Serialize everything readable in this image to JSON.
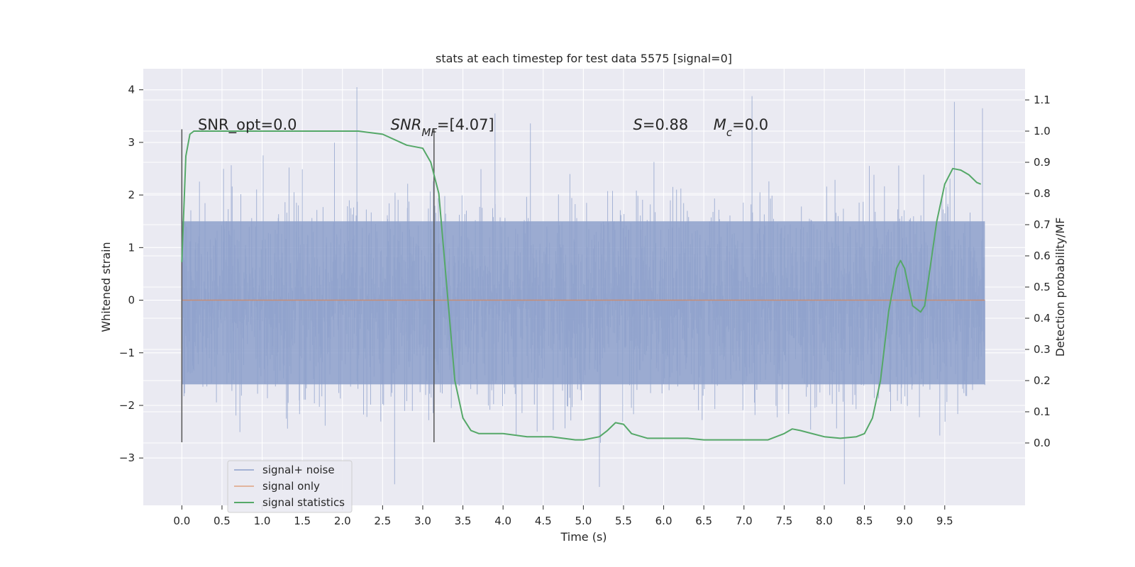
{
  "chart_data": {
    "type": "line",
    "title": "stats at each timestep for test data 5575 [signal=0]",
    "xlabel": "Time (s)",
    "ylabel_left": "Whitened strain",
    "ylabel_right": "Detection probability/MF",
    "xlim": [
      -0.48,
      10.5
    ],
    "ylim_left": [
      -3.9,
      4.4
    ],
    "ylim_right": [
      -0.2,
      1.2
    ],
    "x_ticks": [
      "0.0",
      "0.5",
      "1.0",
      "1.5",
      "2.0",
      "2.5",
      "3.0",
      "3.5",
      "4.0",
      "4.5",
      "5.0",
      "5.5",
      "6.0",
      "6.5",
      "7.0",
      "7.5",
      "8.0",
      "8.5",
      "9.0",
      "9.5"
    ],
    "y_left_ticks": [
      "4",
      "3",
      "2",
      "1",
      "0",
      "−1",
      "−2",
      "−3"
    ],
    "y_right_ticks": [
      "1.1",
      "1.0",
      "0.9",
      "0.8",
      "0.7",
      "0.6",
      "0.5",
      "0.4",
      "0.3",
      "0.2",
      "0.1",
      "0.0"
    ],
    "grid": true,
    "legend_placement": "lower-left",
    "colors": {
      "noise": "#8da0cb",
      "signal_only": "#dd8452",
      "statistics": "#55a868",
      "vline": "#555555",
      "background": "#eaeaf2"
    },
    "series": [
      {
        "name": "signal+ noise",
        "axis": "left",
        "kind": "noise-band",
        "x_range": [
          0.0,
          10.0
        ],
        "envelope": [
          1.5,
          -1.6
        ],
        "notable_peaks": [
          {
            "x": 2.18,
            "y": 4.05
          },
          {
            "x": 7.1,
            "y": 3.88
          },
          {
            "x": 9.62,
            "y": 3.77
          },
          {
            "x": 9.97,
            "y": 3.65
          },
          {
            "x": 3.9,
            "y": 3.55
          },
          {
            "x": 5.2,
            "y": -3.55
          },
          {
            "x": 2.65,
            "y": -3.5
          },
          {
            "x": 8.25,
            "y": -3.5
          }
        ]
      },
      {
        "name": "signal only",
        "axis": "left",
        "x": [
          0.0,
          10.0
        ],
        "y": [
          0.0,
          0.0
        ]
      },
      {
        "name": "signal statistics",
        "axis": "right",
        "x": [
          0.0,
          0.05,
          0.1,
          0.15,
          0.3,
          0.5,
          1.0,
          1.5,
          2.0,
          2.2,
          2.5,
          2.8,
          3.0,
          3.1,
          3.2,
          3.3,
          3.4,
          3.5,
          3.6,
          3.7,
          3.8,
          4.0,
          4.3,
          4.6,
          4.9,
          5.0,
          5.2,
          5.3,
          5.4,
          5.5,
          5.6,
          5.8,
          6.0,
          6.3,
          6.5,
          6.8,
          7.0,
          7.3,
          7.5,
          7.6,
          7.7,
          8.0,
          8.2,
          8.4,
          8.5,
          8.6,
          8.7,
          8.8,
          8.9,
          8.95,
          9.0,
          9.1,
          9.2,
          9.25,
          9.3,
          9.4,
          9.5,
          9.6,
          9.7,
          9.8,
          9.9,
          9.95
        ],
        "y": [
          0.58,
          0.92,
          0.99,
          1.0,
          1.0,
          1.0,
          1.0,
          1.0,
          1.0,
          1.0,
          0.99,
          0.955,
          0.945,
          0.9,
          0.8,
          0.5,
          0.2,
          0.08,
          0.04,
          0.03,
          0.03,
          0.03,
          0.02,
          0.02,
          0.01,
          0.01,
          0.02,
          0.04,
          0.065,
          0.06,
          0.03,
          0.015,
          0.015,
          0.015,
          0.01,
          0.01,
          0.01,
          0.01,
          0.03,
          0.045,
          0.04,
          0.02,
          0.015,
          0.02,
          0.03,
          0.08,
          0.2,
          0.42,
          0.56,
          0.585,
          0.56,
          0.44,
          0.42,
          0.44,
          0.53,
          0.71,
          0.83,
          0.88,
          0.875,
          0.86,
          0.835,
          0.83
        ]
      }
    ],
    "vlines": [
      {
        "x": 0.0,
        "y_left": [
          -2.7,
          3.25
        ]
      },
      {
        "x": 3.14,
        "y_left": [
          -2.7,
          3.25
        ]
      }
    ],
    "annotations": [
      {
        "id": "snr_opt",
        "x": 0.2,
        "y_right": 1.005,
        "parts": [
          {
            "t": "SNR_opt=0.0"
          }
        ]
      },
      {
        "id": "snr_mf",
        "x": 2.6,
        "y_right": 1.005,
        "parts": [
          {
            "t": "SNR",
            "italic": true
          },
          {
            "t": "MF",
            "italic": true,
            "sub": true
          },
          {
            "t": "=[4.07]"
          }
        ]
      },
      {
        "id": "s_val",
        "x": 5.62,
        "y_right": 1.005,
        "parts": [
          {
            "t": "S",
            "italic": true
          },
          {
            "t": "=0.88"
          }
        ]
      },
      {
        "id": "mc_val",
        "x": 6.62,
        "y_right": 1.005,
        "parts": [
          {
            "t": "M",
            "italic": true
          },
          {
            "t": "c",
            "italic": true,
            "sub": true
          },
          {
            "t": "=0.0"
          }
        ]
      }
    ]
  }
}
